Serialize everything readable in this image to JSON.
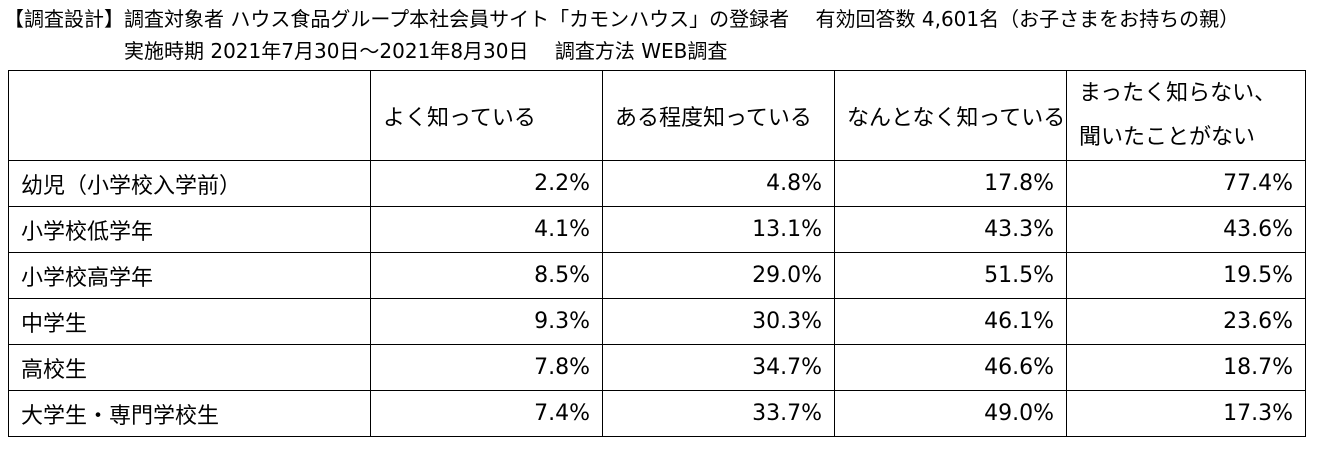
{
  "header": {
    "line1": "【調査設計】調査対象者 ハウス食品グループ本社会員サイト「カモンハウス」の登録者　 有効回答数 4,601名（お子さまをお持ちの親）",
    "line2": "実施時期 2021年7月30日～2021年8月30日　 調査方法 WEB調査"
  },
  "table": {
    "columns": [
      "",
      "よく知っている",
      "ある程度知っている",
      "なんとなく知っている",
      "まったく知らない、聞いたことがない"
    ],
    "rows": [
      {
        "label": "幼児（小学校入学前）",
        "values": [
          "2.2%",
          "4.8%",
          "17.8%",
          "77.4%"
        ]
      },
      {
        "label": "小学校低学年",
        "values": [
          "4.1%",
          "13.1%",
          "43.3%",
          "43.6%"
        ]
      },
      {
        "label": "小学校高学年",
        "values": [
          "8.5%",
          "29.0%",
          "51.5%",
          "19.5%"
        ]
      },
      {
        "label": "中学生",
        "values": [
          "9.3%",
          "30.3%",
          "46.1%",
          "23.6%"
        ]
      },
      {
        "label": "高校生",
        "values": [
          "7.8%",
          "34.7%",
          "46.6%",
          "18.7%"
        ]
      },
      {
        "label": "大学生・専門学校生",
        "values": [
          "7.4%",
          "33.7%",
          "49.0%",
          "17.3%"
        ]
      }
    ]
  }
}
